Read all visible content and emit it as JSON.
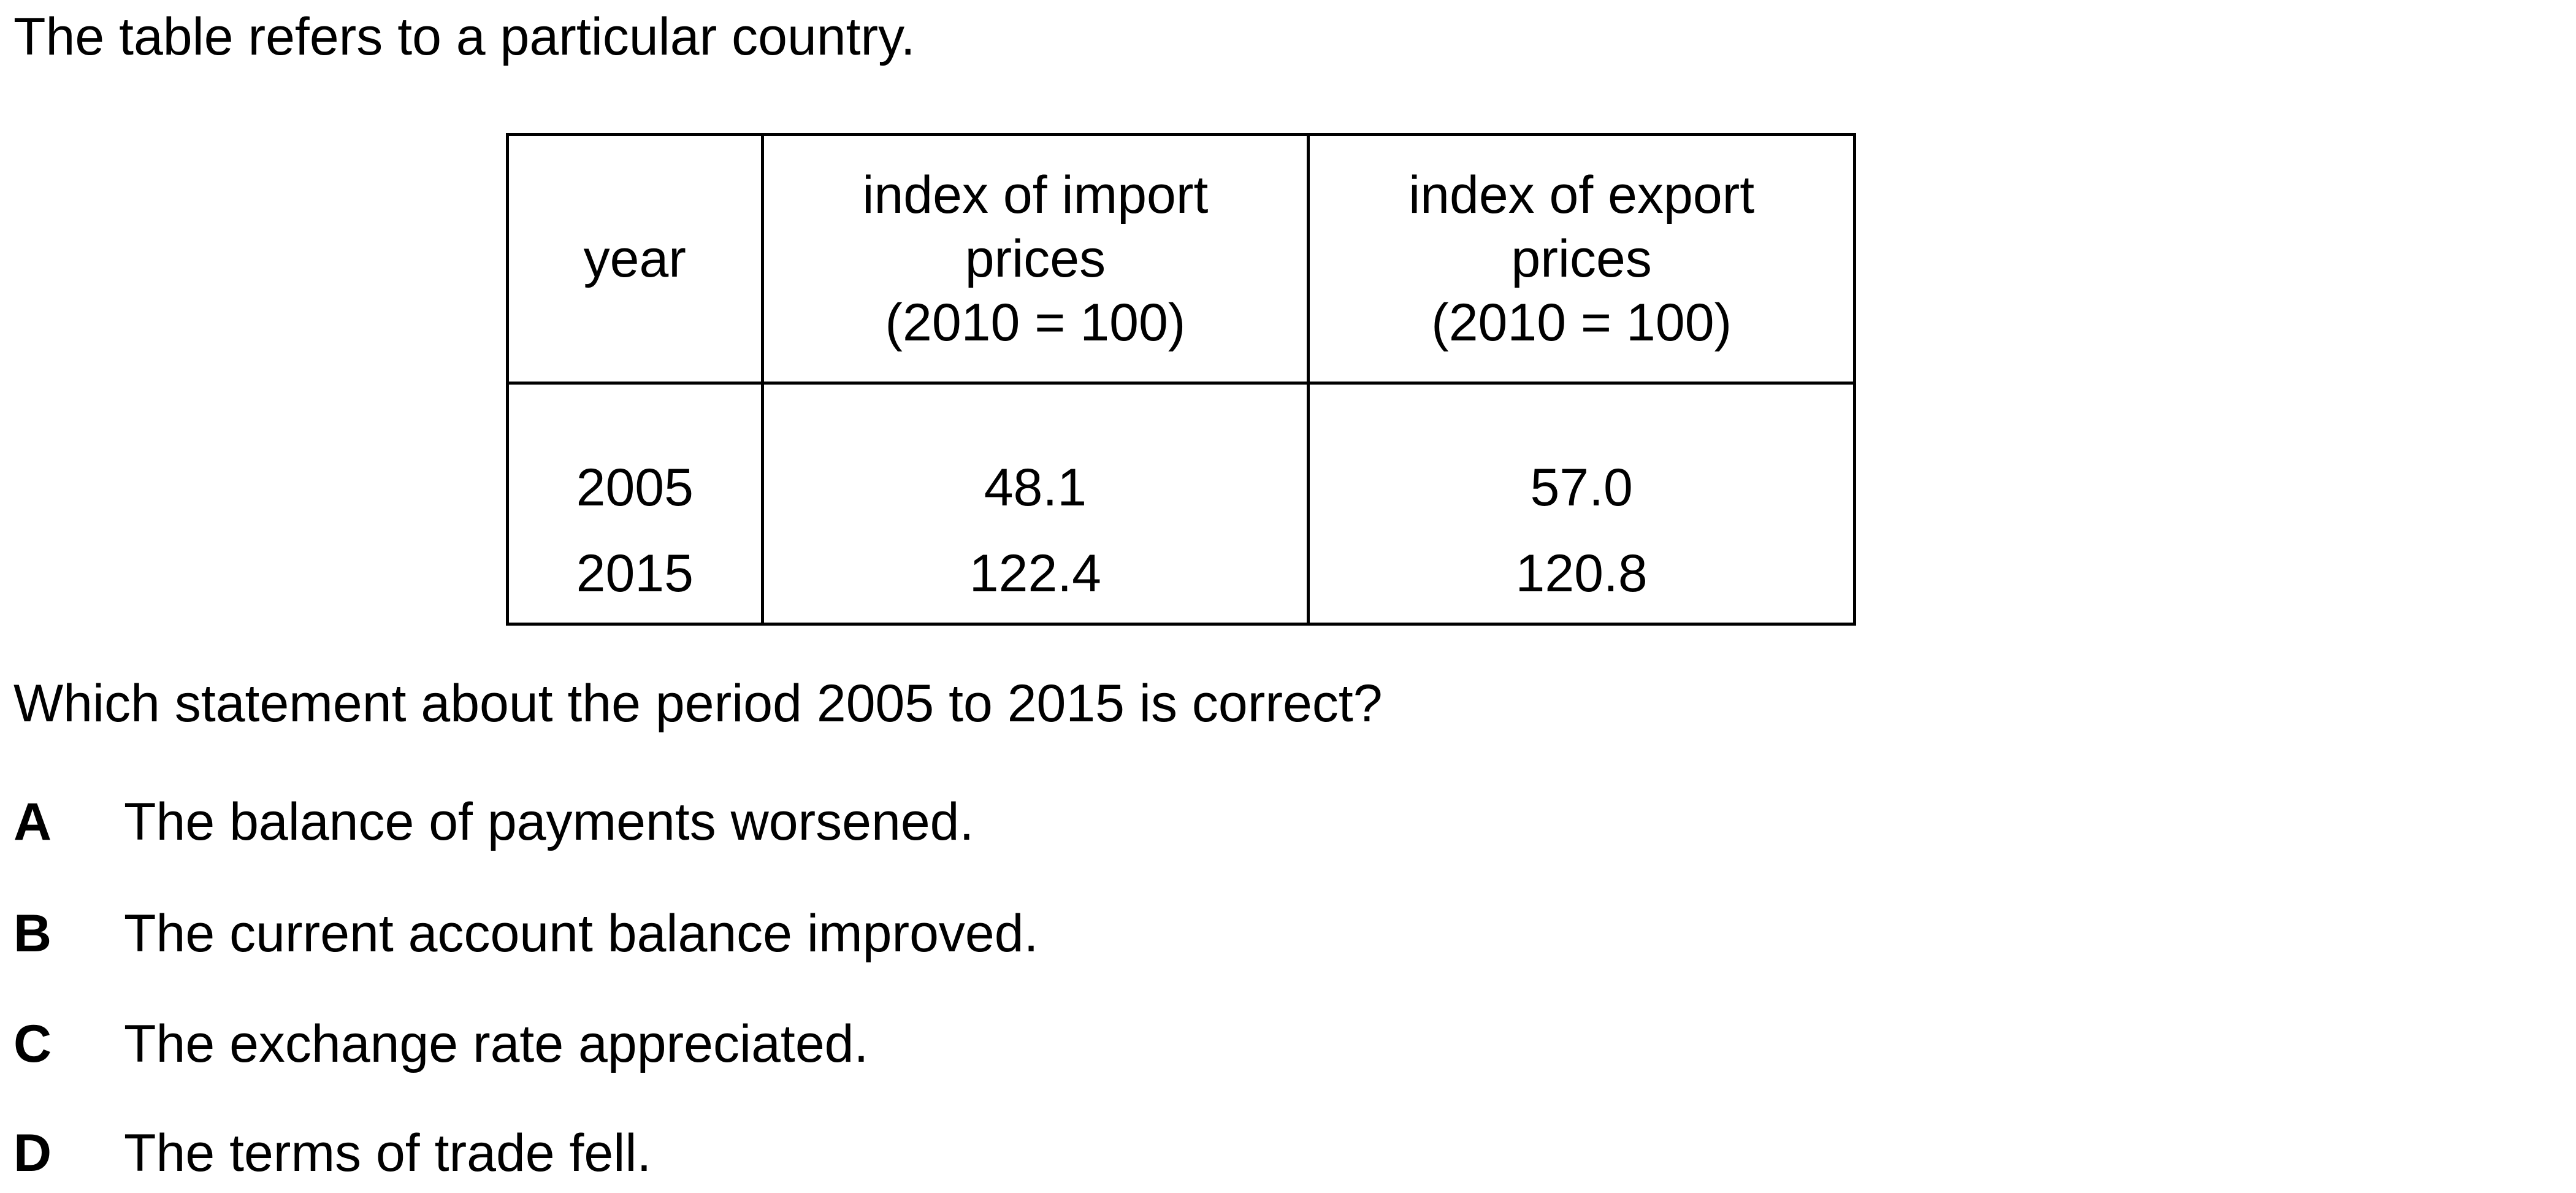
{
  "intro_text": "The table refers to a particular country.",
  "table": {
    "headers": [
      {
        "lines": [
          "year"
        ]
      },
      {
        "lines": [
          "index of import",
          "prices",
          "(2010 = 100)"
        ]
      },
      {
        "lines": [
          "index of export",
          "prices",
          "(2010 = 100)"
        ]
      }
    ],
    "rows": [
      {
        "year": "2005",
        "import": "48.1",
        "export": "57.0"
      },
      {
        "year": "2015",
        "import": "122.4",
        "export": "120.8"
      }
    ]
  },
  "question": "Which statement about the period 2005 to 2015 is correct?",
  "options": [
    {
      "letter": "A",
      "text": "The balance of payments worsened."
    },
    {
      "letter": "B",
      "text": "The current account balance improved."
    },
    {
      "letter": "C",
      "text": "The exchange rate appreciated."
    },
    {
      "letter": "D",
      "text": "The terms of trade fell."
    }
  ]
}
